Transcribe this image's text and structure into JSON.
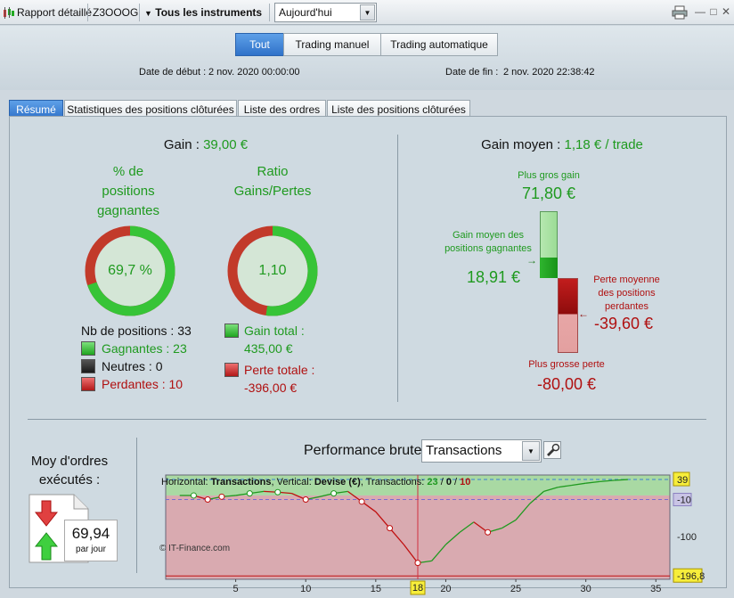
{
  "toolbar": {
    "report_label": "Rapport détaillé",
    "account": "Z3OOOG",
    "instruments_label": "Tous les instruments",
    "period_value": "Aujourd'hui",
    "icon_chart": "candlestick-icon",
    "icon_print": "printer-icon"
  },
  "filters": {
    "tout": "Tout",
    "manuel": "Trading manuel",
    "auto": "Trading automatique",
    "active": "Tout"
  },
  "dates": {
    "start_label": "Date de début :",
    "start_value": "2 nov. 2020 00:00:00",
    "end_label": "Date de fin :",
    "end_value": "2 nov. 2020 22:38:42"
  },
  "tabs": [
    {
      "label": "Résumé",
      "active": true
    },
    {
      "label": "Statistiques des positions clôturées",
      "active": false
    },
    {
      "label": "Liste des ordres",
      "active": false
    },
    {
      "label": "Liste des positions clôturées",
      "active": false
    }
  ],
  "summary": {
    "gain_label": "Gain :",
    "gain_value": "39,00 €",
    "pct_title": "% de positions gagnantes",
    "pct_value": "69,7 %",
    "pct_fraction": 0.697,
    "ratio_title": "Ratio Gains/Pertes",
    "ratio_value": "1,10",
    "ratio_fraction": 0.523,
    "positions_label": "Nb de positions :",
    "positions_value": "33",
    "winners_label": "Gagnantes :",
    "winners_value": "23",
    "neutral_label": "Neutres :",
    "neutral_value": "0",
    "losers_label": "Perdantes :",
    "losers_value": "10",
    "total_gain_label": "Gain total :",
    "total_gain_value": "435,00 €",
    "total_loss_label": "Perte totale :",
    "total_loss_value": "-396,00 €",
    "colors": {
      "green": "#1f9a1f",
      "red": "#b01010"
    }
  },
  "average": {
    "title_label": "Gain moyen :",
    "title_value": "1,18 € / trade",
    "max_gain_label": "Plus gros gain",
    "max_gain_value": "71,80 €",
    "avg_gain_label": "Gain moyen des positions gagnantes",
    "avg_gain_value": "18,91 €",
    "avg_loss_label": "Perte moyenne des positions perdantes",
    "avg_loss_value": "-39,60 €",
    "max_loss_label": "Plus grosse perte",
    "max_loss_value": "-80,00 €"
  },
  "orders": {
    "title": "Moy d'ordres exécutés :",
    "value": "69,94",
    "unit": "par jour"
  },
  "performance": {
    "title": "Performance brute",
    "mode_value": "Transactions",
    "info_h_label": "Horizontal:",
    "info_h_value": "Transactions",
    "info_v_label": "Vertical:",
    "info_v_value": "Devise (€)",
    "info_t_label": "Transactions:",
    "info_t_win": "23",
    "info_t_neutral": "0",
    "info_t_loss": "10",
    "watermark": "© IT-Finance.com",
    "cursor_label": "18"
  },
  "chart_data": {
    "type": "line",
    "x": [
      1,
      2,
      3,
      4,
      5,
      6,
      7,
      8,
      9,
      10,
      11,
      12,
      13,
      14,
      15,
      16,
      17,
      18,
      19,
      20,
      21,
      22,
      23,
      24,
      25,
      26,
      27,
      28,
      29,
      30,
      31,
      32,
      33
    ],
    "y": [
      0,
      0,
      -10,
      -3,
      0,
      5,
      10,
      8,
      5,
      -10,
      -3,
      5,
      10,
      -15,
      -40,
      -80,
      -120,
      -165,
      -160,
      -120,
      -90,
      -65,
      -90,
      -80,
      -60,
      -20,
      10,
      20,
      25,
      30,
      34,
      37,
      39
    ],
    "xticks": [
      5,
      10,
      15,
      20,
      25,
      30,
      35
    ],
    "xlim": [
      0,
      36
    ],
    "ylim": [
      -205,
      50
    ],
    "markers": [
      {
        "label": "39",
        "value": 39
      },
      {
        "label": "-10",
        "value": -10
      },
      {
        "label": "-100",
        "value": -100
      },
      {
        "label": "-196,8",
        "value": -196.8
      }
    ],
    "cursor_x": 18
  }
}
